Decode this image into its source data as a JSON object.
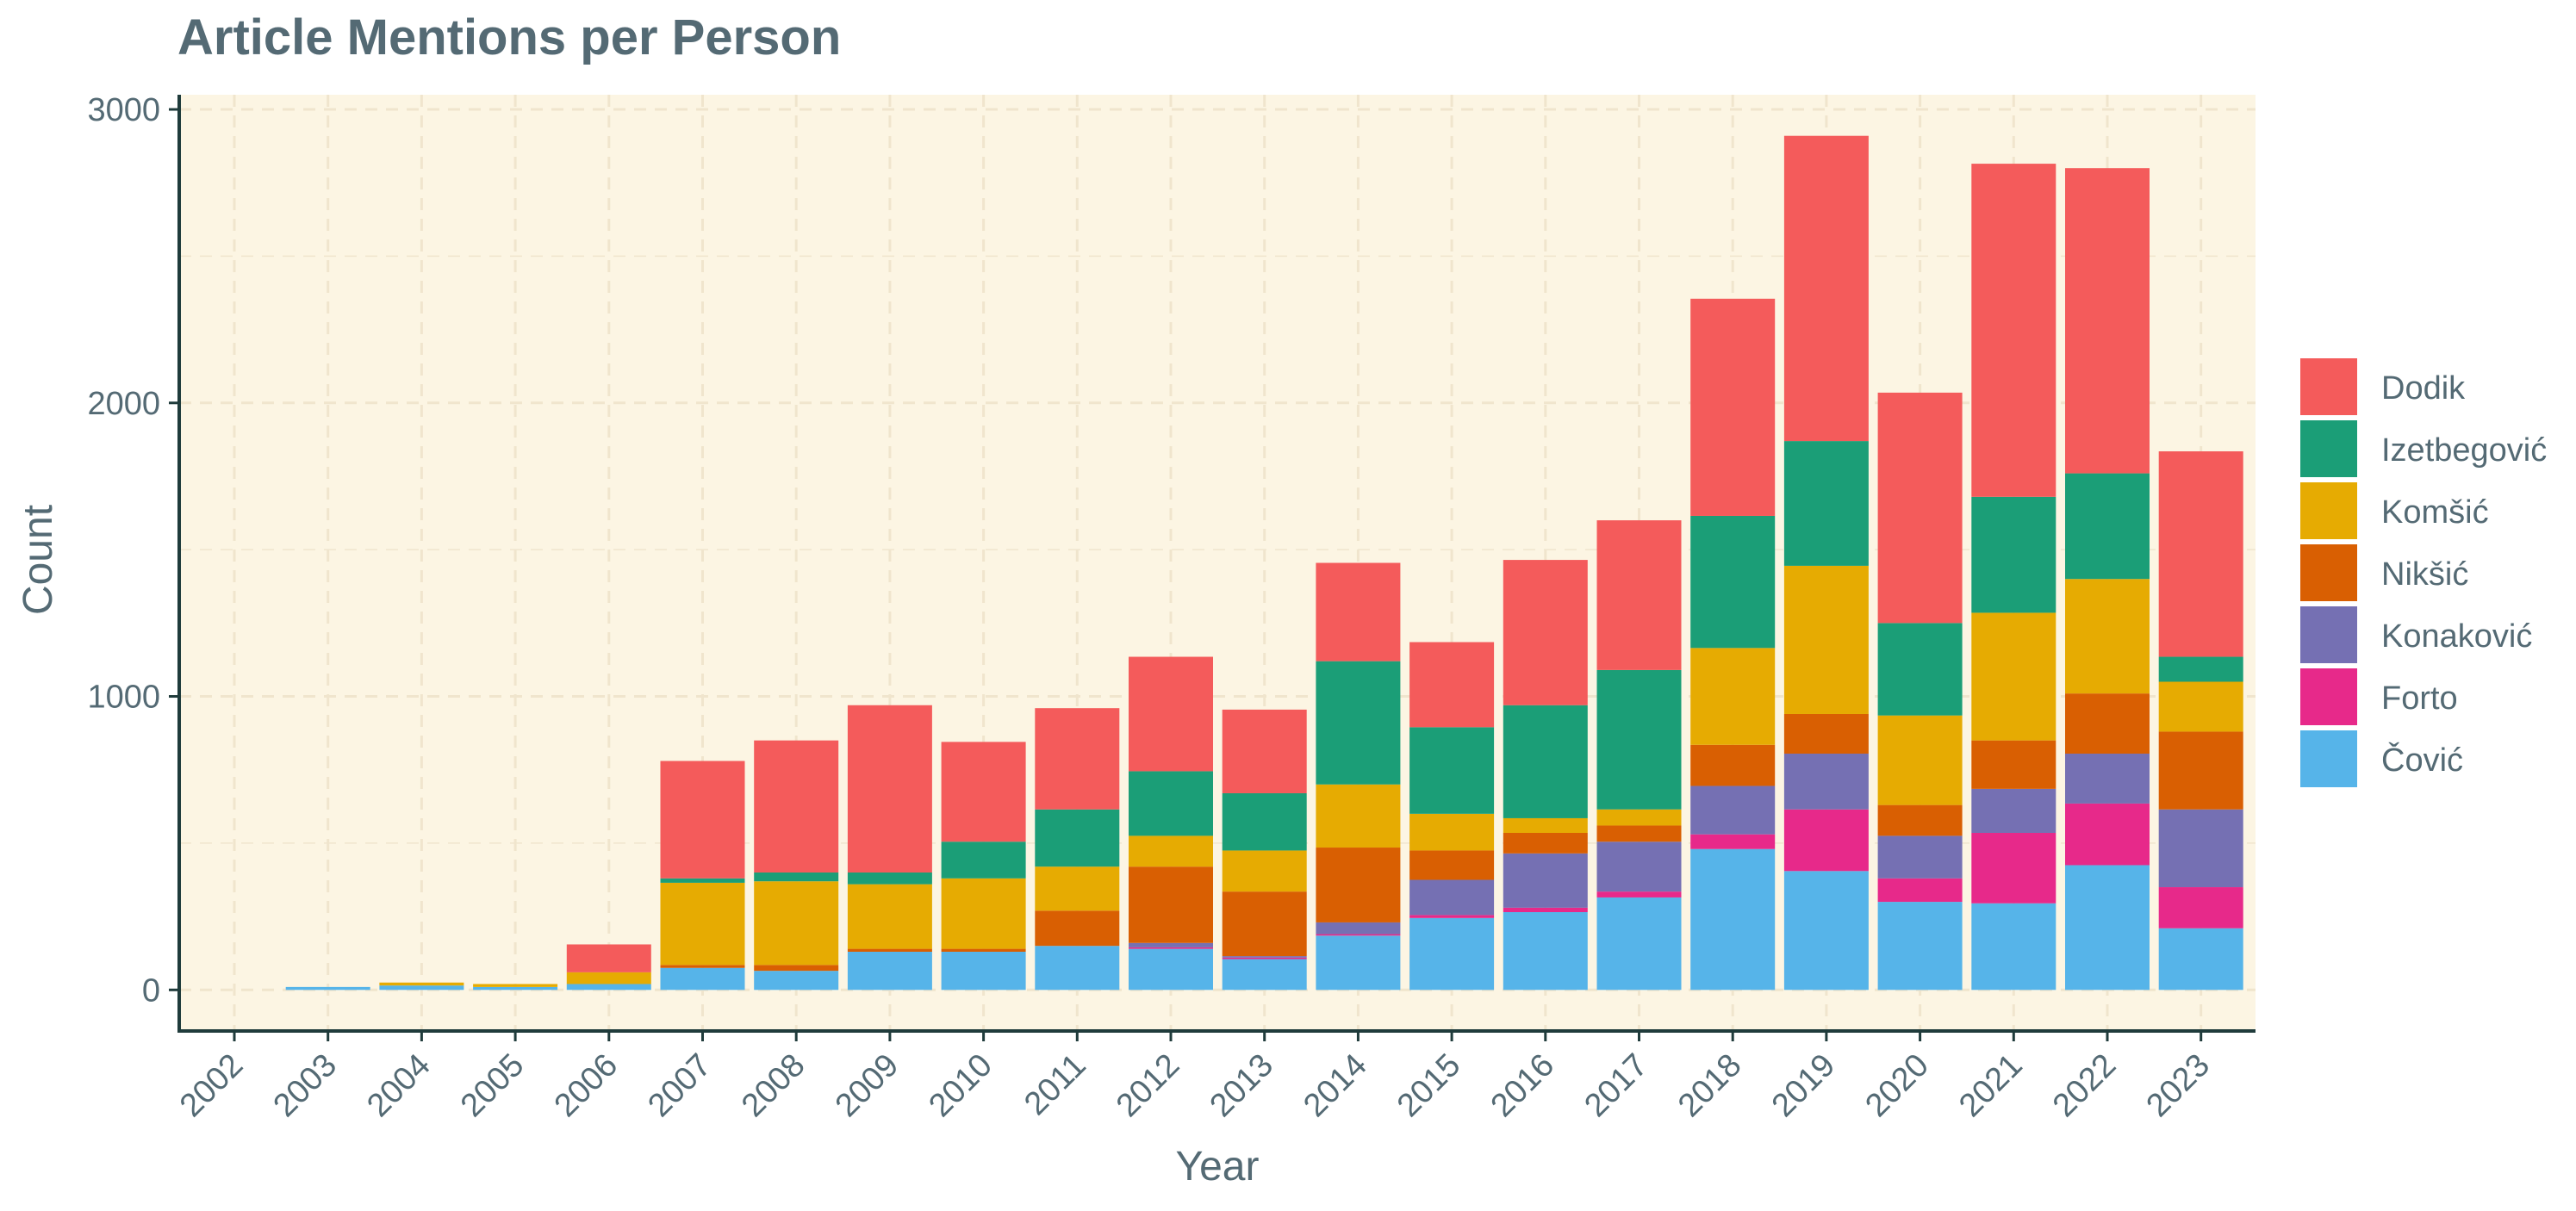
{
  "chart_data": {
    "type": "bar",
    "stacked": true,
    "title": "Article Mentions per Person",
    "xlabel": "Year",
    "ylabel": "Count",
    "ylim": [
      -140,
      3050
    ],
    "yticks": [
      0,
      1000,
      2000,
      3000
    ],
    "grid": true,
    "legend_position": "right",
    "categories": [
      "2002",
      "2003",
      "2004",
      "2005",
      "2006",
      "2007",
      "2008",
      "2009",
      "2010",
      "2011",
      "2012",
      "2013",
      "2014",
      "2015",
      "2016",
      "2017",
      "2018",
      "2019",
      "2020",
      "2021",
      "2022",
      "2023"
    ],
    "series": [
      {
        "name": "Čović",
        "color": "#56b4e9",
        "values": [
          0,
          10,
          15,
          10,
          20,
          75,
          65,
          130,
          130,
          150,
          140,
          105,
          185,
          245,
          265,
          315,
          480,
          405,
          300,
          295,
          425,
          210
        ]
      },
      {
        "name": "Forto",
        "color": "#e7298a",
        "values": [
          0,
          0,
          0,
          0,
          0,
          0,
          0,
          0,
          0,
          0,
          5,
          5,
          5,
          10,
          15,
          20,
          50,
          210,
          80,
          240,
          210,
          140
        ]
      },
      {
        "name": "Konaković",
        "color": "#7570b3",
        "values": [
          0,
          0,
          0,
          0,
          0,
          0,
          0,
          0,
          0,
          0,
          15,
          5,
          40,
          120,
          185,
          170,
          165,
          190,
          145,
          150,
          170,
          265
        ]
      },
      {
        "name": "Nikšić",
        "color": "#d95f02",
        "values": [
          0,
          0,
          0,
          0,
          0,
          10,
          20,
          10,
          10,
          120,
          260,
          220,
          255,
          100,
          70,
          55,
          140,
          135,
          105,
          165,
          205,
          265
        ]
      },
      {
        "name": "Komšić",
        "color": "#e6ab02",
        "values": [
          0,
          0,
          10,
          10,
          40,
          280,
          285,
          220,
          240,
          150,
          105,
          140,
          215,
          125,
          50,
          55,
          330,
          505,
          305,
          435,
          390,
          170
        ]
      },
      {
        "name": "Izetbegović",
        "color": "#1b9e77",
        "values": [
          0,
          0,
          0,
          0,
          0,
          15,
          30,
          40,
          125,
          195,
          220,
          195,
          420,
          295,
          385,
          475,
          450,
          425,
          315,
          395,
          360,
          85
        ]
      },
      {
        "name": "Dodik",
        "color": "#f45b5b",
        "values": [
          0,
          0,
          0,
          0,
          95,
          400,
          450,
          570,
          340,
          345,
          390,
          285,
          335,
          290,
          495,
          510,
          740,
          1040,
          785,
          1135,
          1040,
          700
        ]
      }
    ],
    "legend_order": [
      "Dodik",
      "Izetbegović",
      "Komšić",
      "Nikšić",
      "Konaković",
      "Forto",
      "Čović"
    ]
  },
  "colors": {
    "panel_background": "#fcf5e3",
    "grid_line": "#f0e5cd",
    "axis_line": "#1f3b3b",
    "text": "#546a74"
  }
}
